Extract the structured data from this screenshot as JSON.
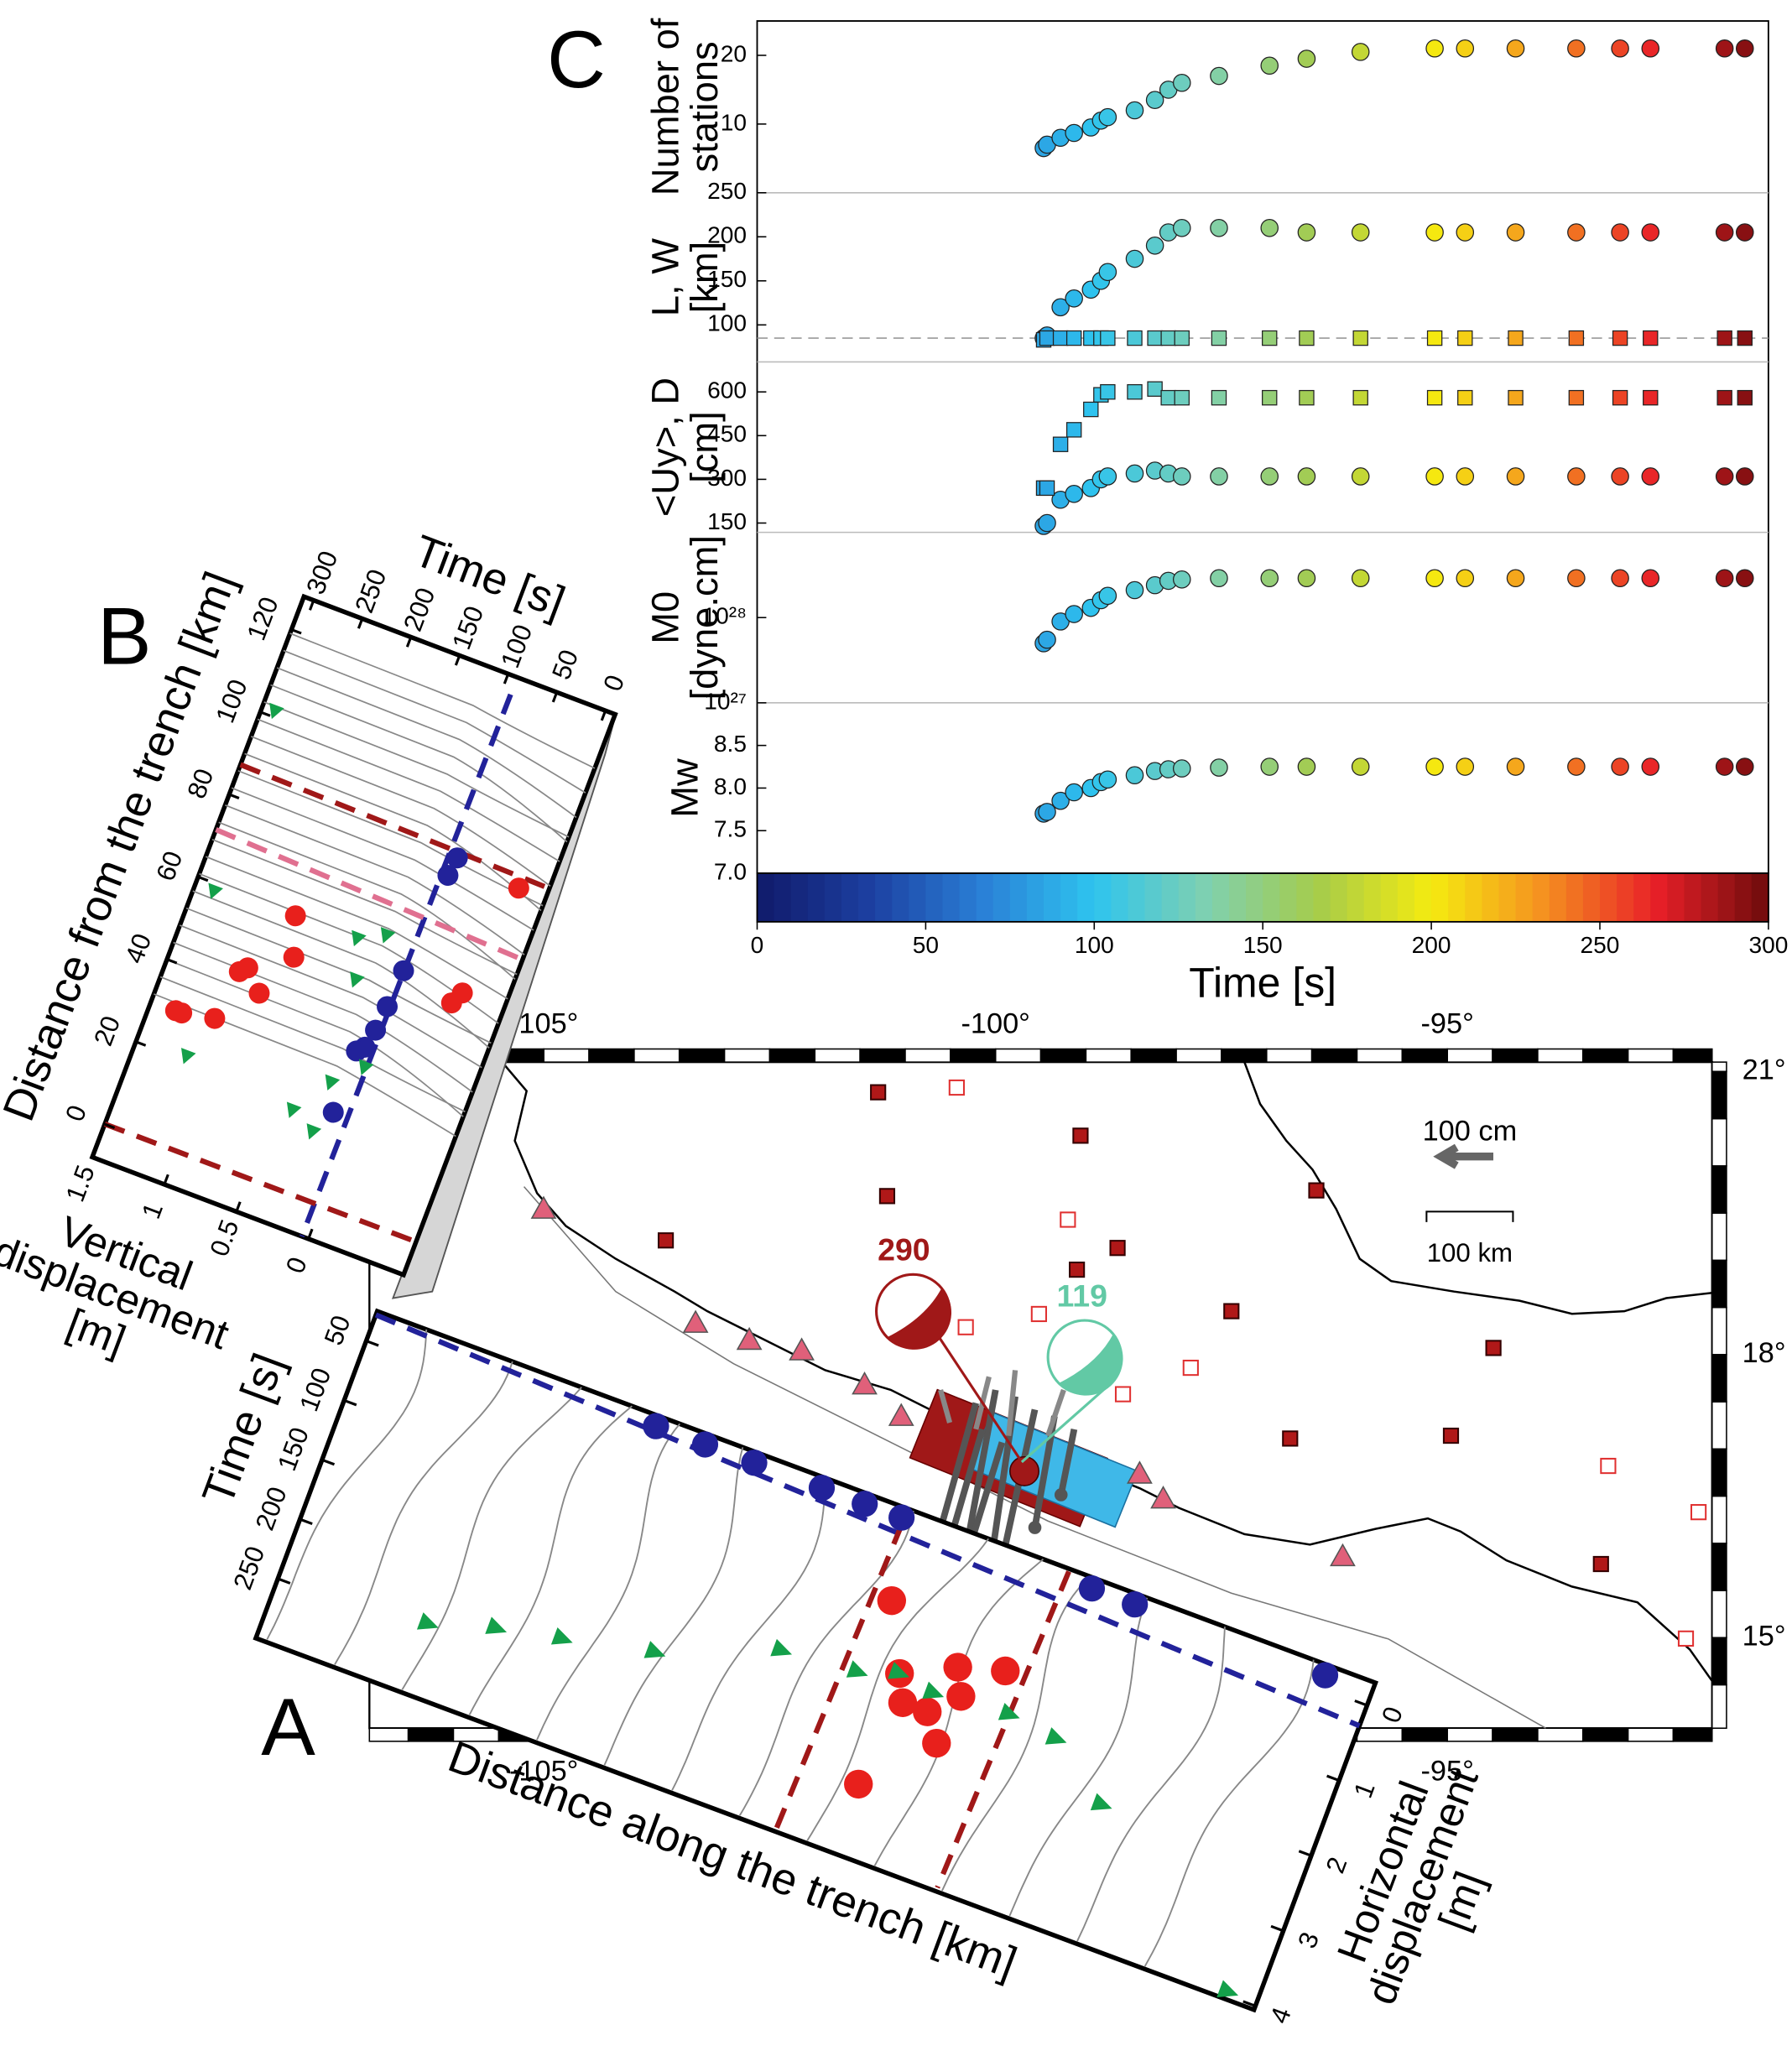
{
  "chart_data": [
    {
      "type": "scatter",
      "ylabel": [
        "Number of",
        "stations"
      ],
      "xlim": [
        0,
        300
      ],
      "ylim": [
        0,
        25
      ],
      "yticks": [
        10,
        20
      ],
      "x": [
        85,
        86,
        90,
        94,
        99,
        102,
        104,
        112,
        118,
        122,
        126,
        137,
        152,
        163,
        179,
        201,
        210,
        225,
        243,
        256,
        265,
        287,
        293
      ],
      "series": [
        {
          "marker": "circle",
          "values": [
            6.5,
            7,
            8,
            8.7,
            9.5,
            10.5,
            11,
            12,
            13.5,
            15,
            16,
            17,
            18.5,
            19.5,
            20.5,
            21,
            21,
            21,
            21,
            21,
            21,
            21,
            21
          ]
        }
      ]
    },
    {
      "type": "scatter",
      "ylabel": [
        "L, W",
        "[km]"
      ],
      "xlim": [
        0,
        300
      ],
      "ylim": [
        58,
        250
      ],
      "yticks": [
        100,
        150,
        200,
        250
      ],
      "hline": 85,
      "x": [
        85,
        86,
        90,
        94,
        99,
        102,
        104,
        112,
        118,
        122,
        126,
        137,
        152,
        163,
        179,
        201,
        210,
        225,
        243,
        256,
        265,
        287,
        293
      ],
      "series": [
        {
          "marker": "circle",
          "values": [
            85,
            88,
            120,
            130,
            140,
            150,
            160,
            175,
            190,
            205,
            210,
            210,
            210,
            205,
            205,
            205,
            205,
            205,
            205,
            205,
            205,
            205,
            205
          ]
        },
        {
          "marker": "square",
          "values": [
            83,
            85,
            85,
            85,
            85,
            85,
            85,
            85,
            85,
            85,
            85,
            85,
            85,
            85,
            85,
            85,
            85,
            85,
            85,
            85,
            85,
            85,
            85
          ]
        }
      ]
    },
    {
      "type": "scatter",
      "ylabel": [
        "<Uy>, D",
        "[cm]"
      ],
      "xlim": [
        0,
        300
      ],
      "ylim": [
        118,
        703
      ],
      "yticks": [
        150,
        300,
        450,
        600
      ],
      "x": [
        85,
        86,
        90,
        94,
        99,
        102,
        104,
        112,
        118,
        122,
        126,
        137,
        152,
        163,
        179,
        201,
        210,
        225,
        243,
        256,
        265,
        287,
        293
      ],
      "series": [
        {
          "marker": "circle",
          "values": [
            140,
            150,
            230,
            250,
            270,
            300,
            310,
            320,
            330,
            320,
            310,
            310,
            310,
            310,
            310,
            310,
            310,
            310,
            310,
            310,
            310,
            310,
            310
          ]
        },
        {
          "marker": "square",
          "values": [
            270,
            270,
            420,
            470,
            540,
            590,
            600,
            600,
            610,
            580,
            580,
            580,
            580,
            580,
            580,
            580,
            580,
            580,
            580,
            580,
            580,
            580,
            580
          ]
        }
      ]
    },
    {
      "type": "scatter",
      "ylabel": [
        "M0",
        "[dyne.cm]"
      ],
      "xlim": [
        0,
        300
      ],
      "ylim": [
        1e+27,
        1e+29
      ],
      "log": true,
      "yticks": [
        {
          "value": 1e+27,
          "label": "10²⁷"
        },
        {
          "value": 1e+28,
          "label": "10²⁸"
        }
      ],
      "x": [
        85,
        86,
        90,
        94,
        99,
        102,
        104,
        112,
        118,
        122,
        126,
        137,
        152,
        163,
        179,
        201,
        210,
        225,
        243,
        256,
        265,
        287,
        293
      ],
      "series": [
        {
          "marker": "circle",
          "values": [
            5e+27,
            5.5e+27,
            9e+27,
            1.1e+28,
            1.3e+28,
            1.6e+28,
            1.8e+28,
            2.1e+28,
            2.4e+28,
            2.7e+28,
            2.8e+28,
            2.9e+28,
            2.9e+28,
            2.9e+28,
            2.9e+28,
            2.9e+28,
            2.9e+28,
            2.9e+28,
            2.9e+28,
            2.9e+28,
            2.9e+28,
            2.9e+28,
            2.9e+28
          ]
        }
      ]
    },
    {
      "type": "scatter",
      "ylabel": [
        "Mw"
      ],
      "xlim": [
        0,
        300
      ],
      "ylim": [
        7.0,
        9.0
      ],
      "yticks": [
        {
          "value": 7,
          "label": "7.0"
        },
        7.5,
        {
          "value": 8,
          "label": "8.0"
        },
        8.5
      ],
      "x": [
        85,
        86,
        90,
        94,
        99,
        102,
        104,
        112,
        118,
        122,
        126,
        137,
        152,
        163,
        179,
        201,
        210,
        225,
        243,
        256,
        265,
        287,
        293
      ],
      "series": [
        {
          "marker": "circle",
          "values": [
            7.7,
            7.72,
            7.85,
            7.95,
            8.0,
            8.07,
            8.1,
            8.15,
            8.2,
            8.22,
            8.23,
            8.24,
            8.25,
            8.25,
            8.25,
            8.25,
            8.25,
            8.25,
            8.25,
            8.25,
            8.25,
            8.25,
            8.25
          ]
        }
      ]
    },
    {
      "type": "map",
      "xlim": [
        -106.93,
        -92.07
      ],
      "ylim": [
        14.04,
        21.1
      ],
      "xticks": [
        {
          "value": -105,
          "label": "-105°"
        },
        {
          "value": -100,
          "label": "-100°"
        },
        {
          "value": -95,
          "label": "-95°"
        }
      ],
      "yticks": [
        {
          "value": 15,
          "label": "15°"
        },
        {
          "value": 18,
          "label": "18°"
        },
        {
          "value": 21,
          "label": "21°"
        }
      ],
      "series": [
        {
          "marker": "filled-square",
          "color": "#b01818",
          "x": [
            -101.3,
            -99.06,
            -101.2,
            -103.65,
            -99.1,
            -98.65,
            -97.39,
            -96.45,
            -94.49,
            -94.96,
            -96.74,
            -93.3
          ],
          "y": [
            20.78,
            20.32,
            19.68,
            19.21,
            18.9,
            19.13,
            18.46,
            19.74,
            18.07,
            17.14,
            17.11,
            15.78
          ]
        },
        {
          "marker": "open-square",
          "color": "#e03030",
          "x": [
            -100.43,
            -99.2,
            -99.52,
            -100.33,
            -97.84,
            -98.59,
            -93.22,
            -92.22,
            -92.36
          ],
          "y": [
            20.83,
            19.43,
            18.43,
            18.29,
            17.86,
            17.58,
            16.82,
            16.33,
            14.99
          ]
        }
      ],
      "annotations": [
        {
          "text": "290",
          "color": "#a01818"
        },
        {
          "text": "119",
          "color": "#62c9a5"
        }
      ],
      "scale": {
        "arrow": "100 cm",
        "bar": "100 km"
      }
    }
  ],
  "colorbar": {
    "label": "Time [s]",
    "lim": [
      0,
      300
    ],
    "ticks": [
      0,
      50,
      100,
      150,
      200,
      250,
      300
    ],
    "colormap": [
      "#101a6a",
      "#1c3fa0",
      "#2a7fd6",
      "#2ec4ef",
      "#7fd0b0",
      "#a6cc4a",
      "#f5eb10",
      "#f59020",
      "#e82028",
      "#6e0c0c"
    ]
  },
  "panel_a": {
    "letter": "A",
    "time_label": "Time [s]",
    "time_ticks": [
      50,
      100,
      150,
      200,
      250
    ],
    "time_lim": [
      25,
      300
    ],
    "distance_label": "Distance along the trench [km]",
    "disp_label": [
      "Horizontal",
      "displacement",
      "[m]"
    ],
    "disp_ticks": [
      0,
      1,
      2,
      3,
      4
    ],
    "disp_lim": [
      -0.3,
      4.05
    ]
  },
  "panel_b": {
    "letter": "B",
    "time_label": "Time [s]",
    "time_ticks": [
      300,
      250,
      200,
      150,
      100,
      50,
      0
    ],
    "time_lim": [
      310,
      -10
    ],
    "distance_label": "Distance from the trench [km]",
    "distance_ticks": [
      0,
      20,
      40,
      60,
      80,
      100,
      120
    ],
    "distance_lim": [
      -8,
      128
    ],
    "disp_label": [
      "Vertical",
      "displacement",
      "[m]"
    ],
    "disp_ticks": [
      1.5,
      1,
      0.5,
      0
    ],
    "disp_lim": [
      1.5,
      -0.66
    ]
  },
  "panel_c": {
    "letter": "C"
  }
}
